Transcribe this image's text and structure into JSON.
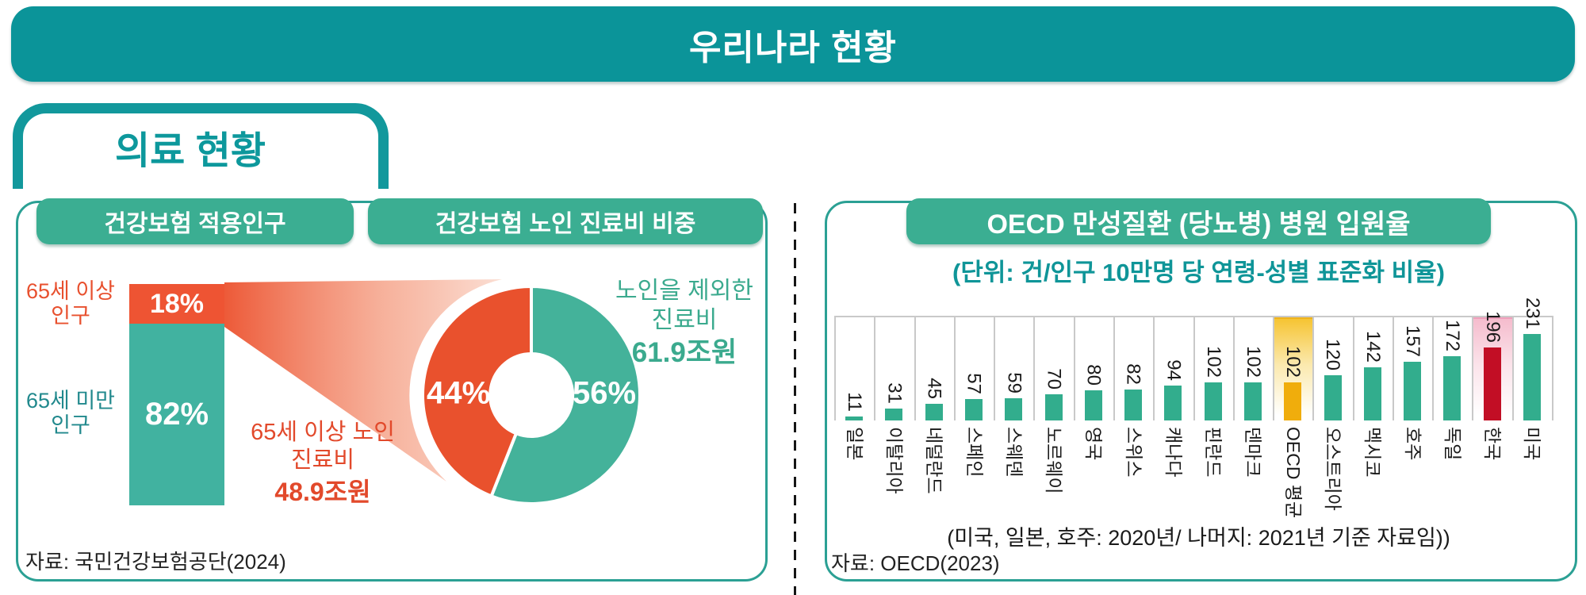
{
  "page": {
    "title": "우리나라 현황",
    "section_title": "의료 현황"
  },
  "colors": {
    "banner_teal": "#0B9499",
    "panel_border": "#2BA094",
    "pill_green": "#3BAE92",
    "stack_orange": "#EE5433",
    "stack_teal": "#41B2A0",
    "donut_orange": "#E9512D",
    "donut_teal": "#44B29A",
    "fan_start": "#EC5330",
    "fan_end": "#FBE0D5",
    "oecd_bar_teal": "#32AD8D",
    "oecd_bar_gold": "#F0AD0C",
    "oecd_bar_red": "#C20E25",
    "grid_gray": "#C9C9C9"
  },
  "left_panel": {
    "pill1": "건강보험 적용인구",
    "pill2": "건강보험 노인 진료비 비중",
    "older_label": [
      "65세 이상",
      "인구"
    ],
    "younger_label": [
      "65세 미만",
      "인구"
    ],
    "elderly_cost": [
      "65세 이상 노인",
      "진료비"
    ],
    "elderly_cost_value": "48.9조원",
    "non_elderly_cost": [
      "노인을 제외한",
      "진료비"
    ],
    "non_elderly_cost_value": "61.9조원",
    "source": "자료: 국민건강보험공단(2024)"
  },
  "right_panel": {
    "title": "OECD 만성질환 (당뇨병) 병원 입원율",
    "subtitle": "(단위: 건/인구 10만명 당 연령-성별 표준화 비율)",
    "note": "(미국, 일본, 호주: 2020년/ 나머지: 2021년 기준 자료임))",
    "source": "자료: OECD(2023)"
  },
  "chart_data": [
    {
      "type": "bar",
      "title": "건강보험 적용인구",
      "categories": [
        "65세 이상 인구",
        "65세 미만 인구"
      ],
      "values": [
        18,
        82
      ],
      "display": [
        "18%",
        "82%"
      ],
      "unit": "%",
      "note": "single stacked column, elderly segment orange on top, under-65 teal below"
    },
    {
      "type": "pie",
      "title": "건강보험 노인 진료비 비중",
      "labels": [
        "65세 이상 노인 진료비",
        "노인을 제외한 진료비"
      ],
      "values": [
        44,
        56
      ],
      "display": [
        "44%",
        "56%"
      ],
      "amounts": [
        "48.9조원",
        "61.9조원"
      ],
      "note": "donut; teal 56% slice starts at 12 o'clock clockwise, orange 44% remainder"
    },
    {
      "type": "bar",
      "title": "OECD 만성질환 (당뇨병) 병원 입원율",
      "xlabel": "",
      "ylabel": "건/인구 10만명 당 연령-성별 표준화 비율",
      "ylim": [
        0,
        280
      ],
      "categories": [
        "일본",
        "이탈리아",
        "네덜란드",
        "스페인",
        "스웨덴",
        "노르웨이",
        "영국",
        "스위스",
        "캐나다",
        "핀란드",
        "덴마크",
        "OECD 평균",
        "오스트리아",
        "멕시코",
        "호주",
        "독일",
        "한국",
        "미국"
      ],
      "values": [
        11,
        31,
        45,
        57,
        59,
        70,
        80,
        82,
        94,
        102,
        102,
        102,
        120,
        142,
        157,
        172,
        196,
        231
      ],
      "highlight": [
        "",
        "",
        "",
        "",
        "",
        "",
        "",
        "",
        "",
        "",
        "",
        "yellow",
        "",
        "",
        "",
        "",
        "red",
        ""
      ],
      "legend": "none",
      "grid": "vertical category separators + top border"
    }
  ]
}
